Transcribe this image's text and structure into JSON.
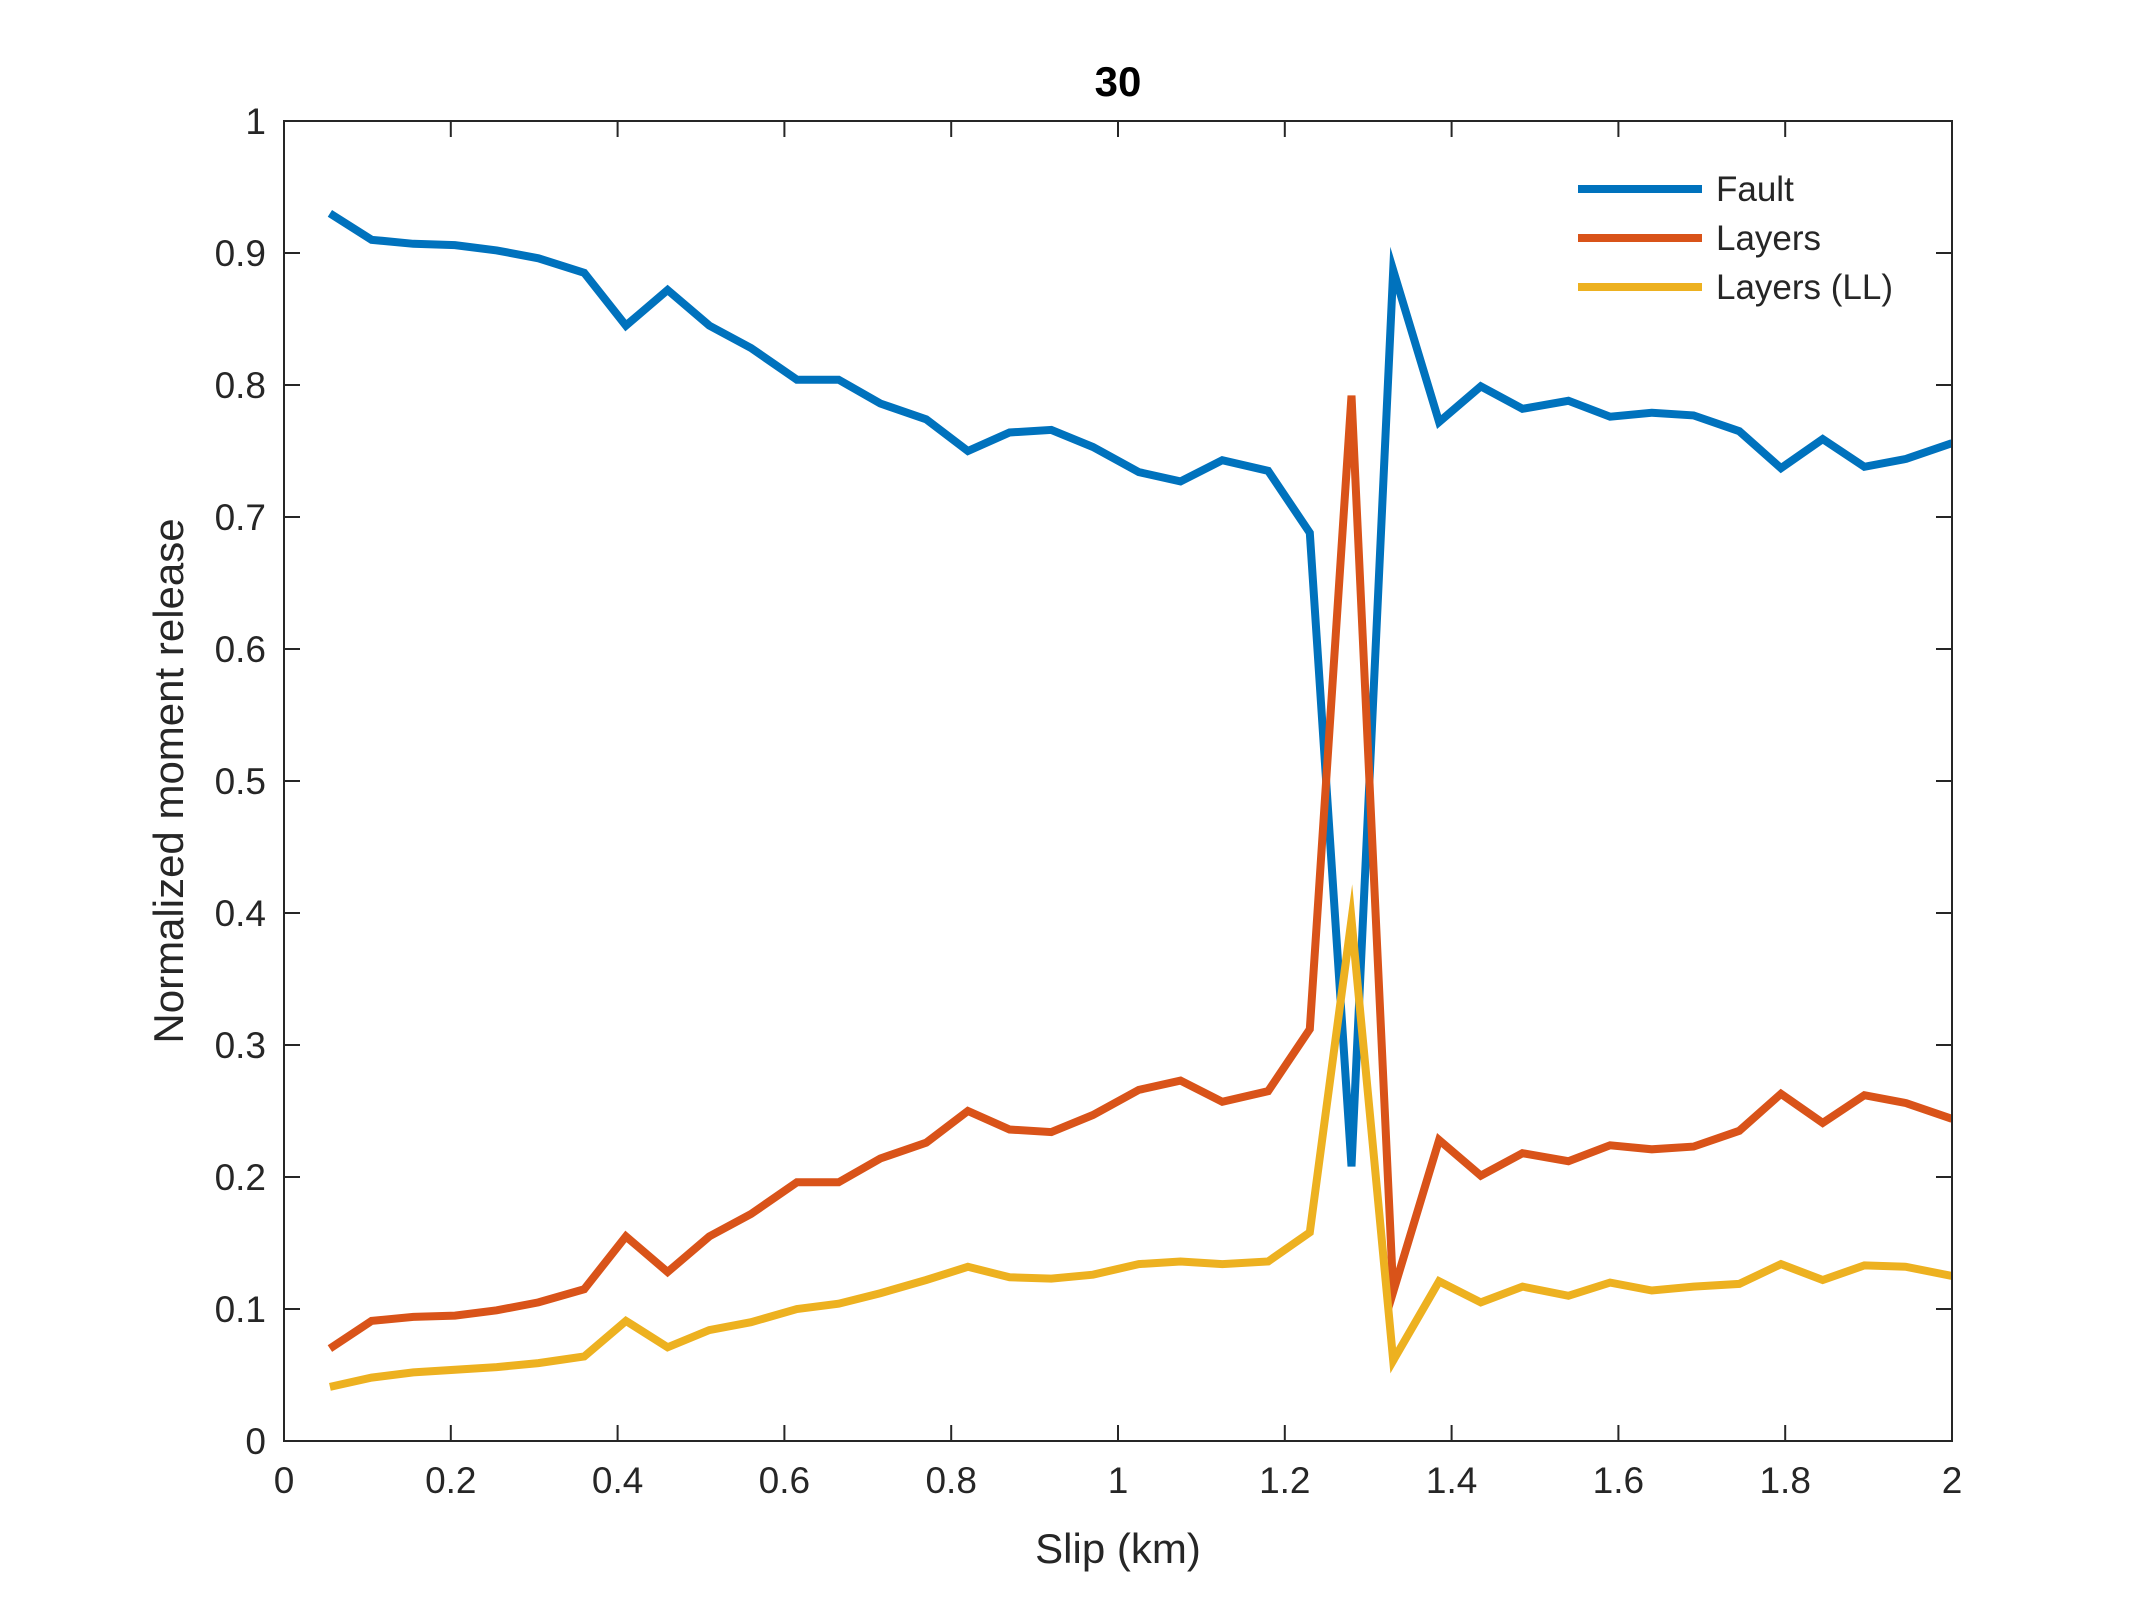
{
  "chart_data": {
    "type": "line",
    "title": "30",
    "xlabel": "Slip (km)",
    "ylabel": "Normalized moment release",
    "xlim": [
      0,
      2
    ],
    "ylim": [
      0,
      1
    ],
    "xticks": [
      0,
      0.2,
      0.4,
      0.6,
      0.8,
      1,
      1.2,
      1.4,
      1.6,
      1.8,
      2
    ],
    "xtick_labels": [
      "0",
      "0.2",
      "0.4",
      "0.6",
      "0.8",
      "1",
      "1.2",
      "1.4",
      "1.6",
      "1.8",
      "2"
    ],
    "yticks": [
      0,
      0.1,
      0.2,
      0.3,
      0.4,
      0.5,
      0.6,
      0.7,
      0.8,
      0.9,
      1
    ],
    "ytick_labels": [
      "0",
      "0.1",
      "0.2",
      "0.3",
      "0.4",
      "0.5",
      "0.6",
      "0.7",
      "0.8",
      "0.9",
      "1"
    ],
    "grid": false,
    "legend_position": "top-right",
    "x": [
      0.055,
      0.105,
      0.155,
      0.205,
      0.255,
      0.305,
      0.36,
      0.41,
      0.46,
      0.51,
      0.56,
      0.615,
      0.665,
      0.715,
      0.77,
      0.82,
      0.87,
      0.92,
      0.97,
      1.025,
      1.075,
      1.125,
      1.18,
      1.23,
      1.28,
      1.33,
      1.385,
      1.435,
      1.485,
      1.54,
      1.59,
      1.64,
      1.69,
      1.745,
      1.795,
      1.845,
      1.895,
      1.945,
      2.0
    ],
    "series": [
      {
        "name": "Fault",
        "color": "#0072BD",
        "values": [
          0.93,
          0.91,
          0.907,
          0.906,
          0.902,
          0.896,
          0.885,
          0.845,
          0.872,
          0.845,
          0.828,
          0.804,
          0.804,
          0.786,
          0.774,
          0.75,
          0.764,
          0.766,
          0.753,
          0.734,
          0.727,
          0.743,
          0.735,
          0.688,
          0.208,
          0.887,
          0.772,
          0.799,
          0.782,
          0.788,
          0.776,
          0.779,
          0.777,
          0.765,
          0.737,
          0.759,
          0.738,
          0.744,
          0.756
        ]
      },
      {
        "name": "Layers",
        "color": "#D95319",
        "values": [
          0.07,
          0.091,
          0.094,
          0.095,
          0.099,
          0.105,
          0.115,
          0.155,
          0.128,
          0.155,
          0.172,
          0.196,
          0.196,
          0.214,
          0.226,
          0.25,
          0.236,
          0.234,
          0.247,
          0.266,
          0.273,
          0.257,
          0.265,
          0.312,
          0.792,
          0.113,
          0.228,
          0.201,
          0.218,
          0.212,
          0.224,
          0.221,
          0.223,
          0.235,
          0.263,
          0.241,
          0.262,
          0.256,
          0.244
        ]
      },
      {
        "name": "Layers (LL)",
        "color": "#EDB120",
        "values": [
          0.041,
          0.048,
          0.052,
          0.054,
          0.056,
          0.059,
          0.064,
          0.091,
          0.071,
          0.084,
          0.09,
          0.1,
          0.104,
          0.112,
          0.122,
          0.132,
          0.124,
          0.123,
          0.126,
          0.134,
          0.136,
          0.134,
          0.136,
          0.158,
          0.395,
          0.061,
          0.121,
          0.105,
          0.117,
          0.11,
          0.12,
          0.114,
          0.117,
          0.119,
          0.134,
          0.122,
          0.133,
          0.132,
          0.125
        ]
      }
    ]
  }
}
